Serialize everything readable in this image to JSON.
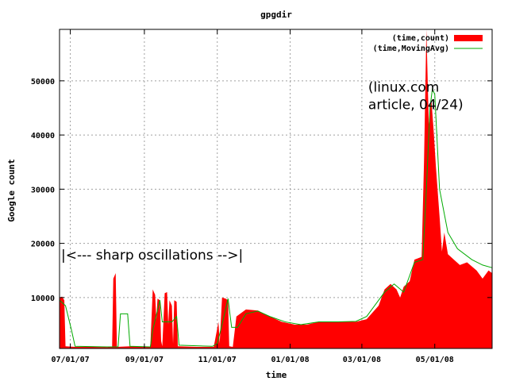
{
  "chart_data": {
    "type": "area",
    "title": "gpgdir",
    "xlabel": "time",
    "ylabel": "Google count",
    "xlim": [
      "2007-06-22",
      "2008-06-18"
    ],
    "ylim": [
      600,
      59500
    ],
    "grid": true,
    "legend_position": "top-right",
    "x_ticks": [
      {
        "date": "2007-07-01",
        "label": "07/01/07"
      },
      {
        "date": "2007-09-01",
        "label": "09/01/07"
      },
      {
        "date": "2007-11-01",
        "label": "11/01/07"
      },
      {
        "date": "2008-01-01",
        "label": "01/01/08"
      },
      {
        "date": "2008-03-01",
        "label": "03/01/08"
      },
      {
        "date": "2008-05-01",
        "label": "05/01/08"
      }
    ],
    "y_ticks": [
      10000,
      20000,
      30000,
      40000,
      50000
    ],
    "series": [
      {
        "name": "(time,count)",
        "style": "filled",
        "color": "#ff0000",
        "points": [
          [
            "2007-06-22",
            9800
          ],
          [
            "2007-06-24",
            10200
          ],
          [
            "2007-06-26",
            9500
          ],
          [
            "2007-06-27",
            1000
          ],
          [
            "2007-07-05",
            900
          ],
          [
            "2007-07-20",
            900
          ],
          [
            "2007-08-01",
            800
          ],
          [
            "2007-08-05",
            900
          ],
          [
            "2007-08-06",
            13500
          ],
          [
            "2007-08-08",
            14500
          ],
          [
            "2007-08-09",
            900
          ],
          [
            "2007-08-20",
            1000
          ],
          [
            "2007-09-05",
            900
          ],
          [
            "2007-09-06",
            1000
          ],
          [
            "2007-09-08",
            11500
          ],
          [
            "2007-09-10",
            10500
          ],
          [
            "2007-09-11",
            6000
          ],
          [
            "2007-09-12",
            9800
          ],
          [
            "2007-09-14",
            9500
          ],
          [
            "2007-09-15",
            2000
          ],
          [
            "2007-09-16",
            1000
          ],
          [
            "2007-09-18",
            10800
          ],
          [
            "2007-09-20",
            11000
          ],
          [
            "2007-09-21",
            5000
          ],
          [
            "2007-09-22",
            9500
          ],
          [
            "2007-09-24",
            8500
          ],
          [
            "2007-09-25",
            1500
          ],
          [
            "2007-09-26",
            9500
          ],
          [
            "2007-09-28",
            9200
          ],
          [
            "2007-09-29",
            1000
          ],
          [
            "2007-10-15",
            900
          ],
          [
            "2007-10-29",
            900
          ],
          [
            "2007-10-30",
            2000
          ],
          [
            "2007-11-02",
            5500
          ],
          [
            "2007-11-03",
            1500
          ],
          [
            "2007-11-05",
            10000
          ],
          [
            "2007-11-08",
            9800
          ],
          [
            "2007-11-10",
            9500
          ],
          [
            "2007-11-11",
            1000
          ],
          [
            "2007-11-14",
            900
          ],
          [
            "2007-11-17",
            6500
          ],
          [
            "2007-11-25",
            7800
          ],
          [
            "2007-12-05",
            7600
          ],
          [
            "2007-12-15",
            6500
          ],
          [
            "2007-12-25",
            5500
          ],
          [
            "2008-01-05",
            5000
          ],
          [
            "2008-01-15",
            5000
          ],
          [
            "2008-01-25",
            5500
          ],
          [
            "2008-02-10",
            5500
          ],
          [
            "2008-02-25",
            5500
          ],
          [
            "2008-03-05",
            6000
          ],
          [
            "2008-03-15",
            8500
          ],
          [
            "2008-03-20",
            11500
          ],
          [
            "2008-03-25",
            12500
          ],
          [
            "2008-03-30",
            11500
          ],
          [
            "2008-04-02",
            10000
          ],
          [
            "2008-04-05",
            12000
          ],
          [
            "2008-04-10",
            13000
          ],
          [
            "2008-04-14",
            17000
          ],
          [
            "2008-04-20",
            17500
          ],
          [
            "2008-04-22",
            35000
          ],
          [
            "2008-04-24",
            60000
          ],
          [
            "2008-04-26",
            42000
          ],
          [
            "2008-04-28",
            47000
          ],
          [
            "2008-04-30",
            41000
          ],
          [
            "2008-05-02",
            34000
          ],
          [
            "2008-05-05",
            25000
          ],
          [
            "2008-05-07",
            18500
          ],
          [
            "2008-05-09",
            22000
          ],
          [
            "2008-05-12",
            18000
          ],
          [
            "2008-05-17",
            17000
          ],
          [
            "2008-05-22",
            16000
          ],
          [
            "2008-05-28",
            16500
          ],
          [
            "2008-06-05",
            15000
          ],
          [
            "2008-06-10",
            13500
          ],
          [
            "2008-06-15",
            15000
          ],
          [
            "2008-06-18",
            14500
          ]
        ]
      },
      {
        "name": "(time,MovingAvg)",
        "style": "line",
        "color": "#00aa00",
        "points": [
          [
            "2007-06-22",
            9500
          ],
          [
            "2007-06-27",
            8500
          ],
          [
            "2007-07-02",
            4000
          ],
          [
            "2007-07-05",
            1000
          ],
          [
            "2007-08-01",
            900
          ],
          [
            "2007-08-10",
            900
          ],
          [
            "2007-08-12",
            7000
          ],
          [
            "2007-08-18",
            7000
          ],
          [
            "2007-08-20",
            1000
          ],
          [
            "2007-09-06",
            900
          ],
          [
            "2007-09-08",
            4000
          ],
          [
            "2007-09-14",
            9500
          ],
          [
            "2007-09-16",
            5500
          ],
          [
            "2007-09-24",
            5500
          ],
          [
            "2007-09-28",
            6500
          ],
          [
            "2007-09-30",
            1200
          ],
          [
            "2007-10-28",
            1000
          ],
          [
            "2007-11-01",
            1500
          ],
          [
            "2007-11-05",
            5000
          ],
          [
            "2007-11-10",
            9800
          ],
          [
            "2007-11-13",
            4500
          ],
          [
            "2007-11-18",
            4500
          ],
          [
            "2007-11-25",
            7000
          ],
          [
            "2007-12-05",
            7500
          ],
          [
            "2007-12-15",
            6500
          ],
          [
            "2007-12-28",
            5500
          ],
          [
            "2008-01-10",
            5000
          ],
          [
            "2008-01-25",
            5500
          ],
          [
            "2008-02-10",
            5500
          ],
          [
            "2008-02-25",
            5600
          ],
          [
            "2008-03-05",
            6500
          ],
          [
            "2008-03-20",
            11000
          ],
          [
            "2008-03-28",
            12500
          ],
          [
            "2008-04-05",
            11000
          ],
          [
            "2008-04-14",
            16500
          ],
          [
            "2008-04-21",
            17000
          ],
          [
            "2008-04-24",
            30000
          ],
          [
            "2008-04-27",
            45000
          ],
          [
            "2008-04-29",
            48500
          ],
          [
            "2008-05-01",
            47500
          ],
          [
            "2008-05-05",
            30000
          ],
          [
            "2008-05-12",
            22000
          ],
          [
            "2008-05-20",
            19000
          ],
          [
            "2008-06-01",
            17000
          ],
          [
            "2008-06-10",
            16000
          ],
          [
            "2008-06-18",
            15500
          ]
        ]
      }
    ],
    "annotations": [
      {
        "text": "(linux.com",
        "date": "2008-03-05",
        "value": 48000
      },
      {
        "text": "article, 04/24)",
        "date": "2008-03-05",
        "value": 44800
      },
      {
        "text": "|<--- sharp oscillations -->|",
        "date": "2007-06-22",
        "value": 17000
      }
    ]
  }
}
